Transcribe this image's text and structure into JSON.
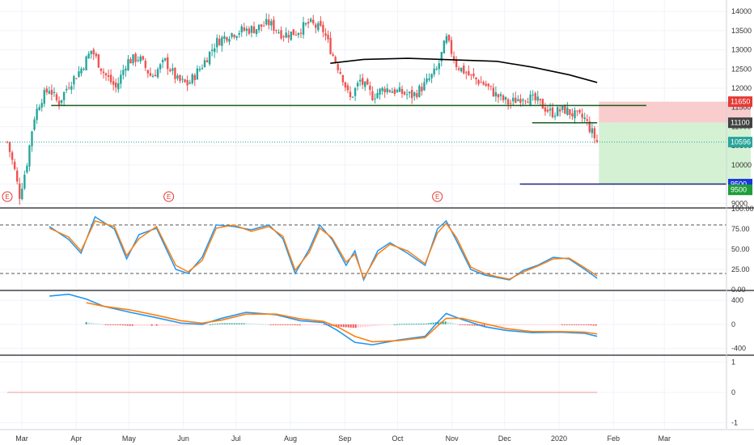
{
  "chart_data": [
    {
      "type": "candlestick",
      "pane": "price",
      "ylim": [
        8900,
        14300
      ],
      "ticks": [
        9000,
        9500,
        10000,
        10500,
        11000,
        11500,
        12000,
        12500,
        13000,
        13500,
        14000
      ],
      "x_months": [
        "Mar",
        "Apr",
        "May",
        "Jun",
        "Jul",
        "Aug",
        "Sep",
        "Oct",
        "Nov",
        "Dec",
        "2020",
        "Feb",
        "Mar"
      ],
      "series_points": [
        [
          "2019-03-01",
          10600
        ],
        [
          "2019-03-05",
          9900
        ],
        [
          "2019-03-08",
          9200
        ],
        [
          "2019-03-12",
          10000
        ],
        [
          "2019-03-16",
          11200
        ],
        [
          "2019-03-20",
          11700
        ],
        [
          "2019-03-25",
          12000
        ],
        [
          "2019-03-30",
          11600
        ],
        [
          "2019-04-05",
          12100
        ],
        [
          "2019-04-12",
          12500
        ],
        [
          "2019-04-18",
          13000
        ],
        [
          "2019-04-25",
          12400
        ],
        [
          "2019-05-02",
          12000
        ],
        [
          "2019-05-08",
          12700
        ],
        [
          "2019-05-15",
          12800
        ],
        [
          "2019-05-22",
          12300
        ],
        [
          "2019-05-30",
          12700
        ],
        [
          "2019-06-06",
          12200
        ],
        [
          "2019-06-12",
          12100
        ],
        [
          "2019-06-20",
          12600
        ],
        [
          "2019-06-28",
          13200
        ],
        [
          "2019-07-05",
          13400
        ],
        [
          "2019-07-12",
          13500
        ],
        [
          "2019-07-20",
          13550
        ],
        [
          "2019-07-28",
          13700
        ],
        [
          "2019-08-05",
          13400
        ],
        [
          "2019-08-12",
          13450
        ],
        [
          "2019-08-20",
          13700
        ],
        [
          "2019-08-28",
          13500
        ],
        [
          "2019-09-03",
          12800
        ],
        [
          "2019-09-08",
          12300
        ],
        [
          "2019-09-12",
          11700
        ],
        [
          "2019-09-18",
          12200
        ],
        [
          "2019-09-25",
          11800
        ],
        [
          "2019-10-02",
          12000
        ],
        [
          "2019-10-10",
          11900
        ],
        [
          "2019-10-18",
          11800
        ],
        [
          "2019-10-25",
          12100
        ],
        [
          "2019-11-01",
          12500
        ],
        [
          "2019-11-06",
          13300
        ],
        [
          "2019-11-12",
          12600
        ],
        [
          "2019-11-20",
          12300
        ],
        [
          "2019-11-28",
          12100
        ],
        [
          "2019-12-05",
          11800
        ],
        [
          "2019-12-12",
          11600
        ],
        [
          "2019-12-20",
          11800
        ],
        [
          "2019-12-28",
          11650
        ],
        [
          "2020-01-05",
          11350
        ],
        [
          "2020-01-12",
          11450
        ],
        [
          "2020-01-18",
          11300
        ],
        [
          "2020-01-24",
          11200
        ],
        [
          "2020-01-28",
          10850
        ],
        [
          "2020-01-31",
          10596
        ]
      ],
      "ma_line": [
        [
          "2019-09-01",
          12650
        ],
        [
          "2019-09-20",
          12750
        ],
        [
          "2019-10-15",
          12780
        ],
        [
          "2019-11-10",
          12740
        ],
        [
          "2019-12-05",
          12700
        ],
        [
          "2019-12-25",
          12550
        ],
        [
          "2020-01-15",
          12350
        ],
        [
          "2020-01-31",
          12150
        ]
      ],
      "drawings": {
        "support_line": {
          "x1": "2019-03-26",
          "x2": "2020-01-31",
          "y": 11550,
          "color": "#1b5e20"
        },
        "short_resistance": {
          "x1": "2019-12-25",
          "x2": "2020-01-31",
          "y": 11100,
          "color": "#1b5e20"
        },
        "target_line": {
          "x1": "2019-12-18",
          "x2": "2020-03-31",
          "y": 9500,
          "color": "#1a237e"
        },
        "stop_zone": {
          "x1": "2020-02-01",
          "x2": "2020-03-31",
          "y1": 11650,
          "y2": 11100,
          "color": "#f8c4c4"
        },
        "target_zone": {
          "x1": "2020-02-01",
          "x2": "2020-03-31",
          "y1": 11100,
          "y2": 9500,
          "color": "#cdeecd"
        },
        "current_price_line": {
          "y": 10596,
          "color": "#26a69a"
        }
      },
      "badges": [
        {
          "label": "11650",
          "value": 11650,
          "color": "#e53935"
        },
        {
          "label": "11100",
          "value": 11100,
          "color": "#424242"
        },
        {
          "label": "10596",
          "value": 10596,
          "color": "#26a69a"
        },
        {
          "label": "9500",
          "value": 9500,
          "color": "#1a3ad6"
        },
        {
          "label": "9500",
          "value": 9350,
          "color": "#1f9e3c"
        }
      ],
      "earnings_markers": [
        {
          "label": "E",
          "date": "2019-03-01"
        },
        {
          "label": "E",
          "date": "2019-06-01"
        },
        {
          "label": "E",
          "date": "2019-11-01"
        }
      ],
      "colors": {
        "up": "#26a69a",
        "down": "#ef5350",
        "ma": "#000000"
      }
    },
    {
      "type": "line",
      "pane": "stochastic",
      "ylim": [
        0,
        100
      ],
      "ticks": [
        "100.00",
        "75.00",
        "50.00",
        "25.00",
        "0.00"
      ],
      "levels": [
        80,
        20
      ],
      "series": [
        {
          "key": "k",
          "color": "#2196f3",
          "points": [
            [
              "2019-03-25",
              78
            ],
            [
              "2019-04-05",
              62
            ],
            [
              "2019-04-12",
              45
            ],
            [
              "2019-04-20",
              90
            ],
            [
              "2019-05-01",
              75
            ],
            [
              "2019-05-08",
              38
            ],
            [
              "2019-05-15",
              68
            ],
            [
              "2019-05-25",
              76
            ],
            [
              "2019-06-05",
              25
            ],
            [
              "2019-06-12",
              20
            ],
            [
              "2019-06-20",
              40
            ],
            [
              "2019-06-28",
              80
            ],
            [
              "2019-07-08",
              78
            ],
            [
              "2019-07-18",
              74
            ],
            [
              "2019-07-28",
              80
            ],
            [
              "2019-08-05",
              63
            ],
            [
              "2019-08-12",
              20
            ],
            [
              "2019-08-20",
              50
            ],
            [
              "2019-08-26",
              80
            ],
            [
              "2019-09-02",
              62
            ],
            [
              "2019-09-10",
              30
            ],
            [
              "2019-09-15",
              48
            ],
            [
              "2019-09-20",
              12
            ],
            [
              "2019-09-28",
              48
            ],
            [
              "2019-10-05",
              58
            ],
            [
              "2019-10-15",
              45
            ],
            [
              "2019-10-25",
              30
            ],
            [
              "2019-11-01",
              75
            ],
            [
              "2019-11-06",
              85
            ],
            [
              "2019-11-12",
              60
            ],
            [
              "2019-11-20",
              25
            ],
            [
              "2019-11-28",
              18
            ],
            [
              "2019-12-05",
              15
            ],
            [
              "2019-12-12",
              12
            ],
            [
              "2019-12-20",
              24
            ],
            [
              "2019-12-28",
              30
            ],
            [
              "2020-01-06",
              40
            ],
            [
              "2020-01-15",
              38
            ],
            [
              "2020-01-24",
              25
            ],
            [
              "2020-01-31",
              14
            ]
          ]
        },
        {
          "key": "d",
          "color": "#ff7f0e",
          "points": [
            [
              "2019-03-25",
              76
            ],
            [
              "2019-04-05",
              65
            ],
            [
              "2019-04-12",
              48
            ],
            [
              "2019-04-20",
              85
            ],
            [
              "2019-05-01",
              78
            ],
            [
              "2019-05-08",
              42
            ],
            [
              "2019-05-15",
              63
            ],
            [
              "2019-05-25",
              78
            ],
            [
              "2019-06-05",
              30
            ],
            [
              "2019-06-12",
              22
            ],
            [
              "2019-06-20",
              36
            ],
            [
              "2019-06-28",
              76
            ],
            [
              "2019-07-08",
              80
            ],
            [
              "2019-07-18",
              72
            ],
            [
              "2019-07-28",
              78
            ],
            [
              "2019-08-05",
              66
            ],
            [
              "2019-08-12",
              24
            ],
            [
              "2019-08-20",
              46
            ],
            [
              "2019-08-26",
              76
            ],
            [
              "2019-09-02",
              64
            ],
            [
              "2019-09-10",
              34
            ],
            [
              "2019-09-15",
              44
            ],
            [
              "2019-09-20",
              14
            ],
            [
              "2019-09-28",
              44
            ],
            [
              "2019-10-05",
              56
            ],
            [
              "2019-10-15",
              48
            ],
            [
              "2019-10-25",
              32
            ],
            [
              "2019-11-01",
              70
            ],
            [
              "2019-11-06",
              82
            ],
            [
              "2019-11-12",
              64
            ],
            [
              "2019-11-20",
              28
            ],
            [
              "2019-11-28",
              20
            ],
            [
              "2019-12-05",
              16
            ],
            [
              "2019-12-12",
              13
            ],
            [
              "2019-12-20",
              22
            ],
            [
              "2019-12-28",
              29
            ],
            [
              "2020-01-06",
              38
            ],
            [
              "2020-01-15",
              39
            ],
            [
              "2020-01-24",
              27
            ],
            [
              "2020-01-31",
              17
            ]
          ]
        }
      ]
    },
    {
      "type": "line+bar",
      "pane": "macd",
      "ylim": [
        -500,
        550
      ],
      "ticks": [
        400,
        0,
        -400
      ],
      "series": [
        {
          "key": "macd",
          "color": "#2196f3",
          "points": [
            [
              "2019-03-25",
              470
            ],
            [
              "2019-04-05",
              500
            ],
            [
              "2019-04-15",
              420
            ],
            [
              "2019-04-25",
              300
            ],
            [
              "2019-05-10",
              200
            ],
            [
              "2019-05-25",
              110
            ],
            [
              "2019-06-08",
              20
            ],
            [
              "2019-06-20",
              0
            ],
            [
              "2019-07-01",
              100
            ],
            [
              "2019-07-15",
              200
            ],
            [
              "2019-08-01",
              160
            ],
            [
              "2019-08-15",
              60
            ],
            [
              "2019-08-28",
              30
            ],
            [
              "2019-09-05",
              -100
            ],
            [
              "2019-09-15",
              -300
            ],
            [
              "2019-09-25",
              -340
            ],
            [
              "2019-10-10",
              -260
            ],
            [
              "2019-10-25",
              -200
            ],
            [
              "2019-11-01",
              30
            ],
            [
              "2019-11-06",
              180
            ],
            [
              "2019-11-15",
              80
            ],
            [
              "2019-11-28",
              -40
            ],
            [
              "2019-12-10",
              -100
            ],
            [
              "2019-12-25",
              -140
            ],
            [
              "2020-01-10",
              -130
            ],
            [
              "2020-01-24",
              -150
            ],
            [
              "2020-01-31",
              -200
            ]
          ]
        },
        {
          "key": "signal",
          "color": "#ff7f0e",
          "points": [
            [
              "2019-04-15",
              360
            ],
            [
              "2019-04-25",
              300
            ],
            [
              "2019-05-10",
              240
            ],
            [
              "2019-05-25",
              150
            ],
            [
              "2019-06-08",
              60
            ],
            [
              "2019-06-20",
              20
            ],
            [
              "2019-07-01",
              70
            ],
            [
              "2019-07-15",
              170
            ],
            [
              "2019-08-01",
              170
            ],
            [
              "2019-08-15",
              90
            ],
            [
              "2019-08-28",
              50
            ],
            [
              "2019-09-05",
              -40
            ],
            [
              "2019-09-15",
              -200
            ],
            [
              "2019-09-25",
              -290
            ],
            [
              "2019-10-10",
              -270
            ],
            [
              "2019-10-25",
              -220
            ],
            [
              "2019-11-01",
              -30
            ],
            [
              "2019-11-06",
              100
            ],
            [
              "2019-11-15",
              100
            ],
            [
              "2019-11-28",
              10
            ],
            [
              "2019-12-10",
              -70
            ],
            [
              "2019-12-25",
              -120
            ],
            [
              "2020-01-10",
              -120
            ],
            [
              "2020-01-24",
              -130
            ],
            [
              "2020-01-31",
              -160
            ]
          ]
        }
      ],
      "histogram_colors": {
        "positive": "#26a69a",
        "negative": "#ef5350",
        "positive_light": "#b2dfdb",
        "negative_light": "#ffcdd2"
      }
    },
    {
      "type": "line",
      "pane": "indicator",
      "ylim": [
        -1.2,
        1.2
      ],
      "ticks": [
        1,
        0,
        -1
      ],
      "series": [
        {
          "key": "zero",
          "color": "#ef9a9a",
          "points": [
            [
              "2019-03-01",
              0
            ],
            [
              "2020-01-31",
              0
            ]
          ]
        }
      ]
    }
  ]
}
